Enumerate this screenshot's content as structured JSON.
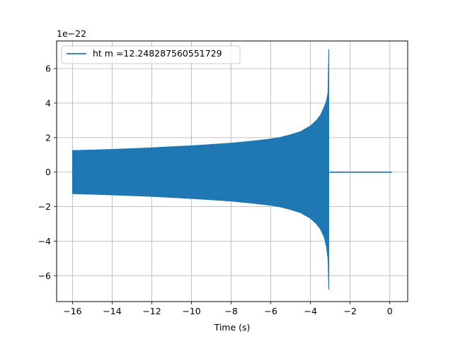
{
  "chart_data": {
    "type": "line",
    "title": "",
    "xlabel": "Time (s)",
    "ylabel": "",
    "y_offset_label": "1e−22",
    "xlim": [
      -16.8,
      0.9
    ],
    "ylim": [
      -7.5,
      7.6
    ],
    "x_ticks": [
      -16,
      -14,
      -12,
      -10,
      -8,
      -6,
      -4,
      -2,
      0
    ],
    "x_tick_labels": [
      "−16",
      "−14",
      "−12",
      "−10",
      "−8",
      "−6",
      "−4",
      "−2",
      "0"
    ],
    "y_ticks": [
      -6,
      -4,
      -2,
      0,
      2,
      4,
      6
    ],
    "y_tick_labels": [
      "−6",
      "−4",
      "−2",
      "0",
      "2",
      "4",
      "6"
    ],
    "grid": true,
    "legend_position": "top-left",
    "series": [
      {
        "name": "ht m =12.248287560551729",
        "color": "#1f77b4",
        "envelope_x": [
          -16.0,
          -15.0,
          -14.0,
          -13.0,
          -12.0,
          -11.0,
          -10.0,
          -9.0,
          -8.0,
          -7.0,
          -6.0,
          -5.5,
          -5.0,
          -4.5,
          -4.0,
          -3.7,
          -3.5,
          -3.3,
          -3.2,
          -3.12,
          -3.08
        ],
        "envelope_upper": [
          1.25,
          1.28,
          1.32,
          1.36,
          1.41,
          1.47,
          1.53,
          1.6,
          1.68,
          1.79,
          1.92,
          2.02,
          2.17,
          2.35,
          2.68,
          3.0,
          3.3,
          3.8,
          4.1,
          4.6,
          7.1
        ],
        "envelope_lower": [
          -1.25,
          -1.28,
          -1.32,
          -1.36,
          -1.41,
          -1.47,
          -1.53,
          -1.6,
          -1.68,
          -1.79,
          -1.92,
          -2.02,
          -2.17,
          -2.35,
          -2.68,
          -3.0,
          -3.3,
          -3.8,
          -4.3,
          -5.0,
          -6.8
        ],
        "ringdown_x": [
          -3.05,
          0.1
        ],
        "ringdown_y": [
          0,
          0
        ]
      }
    ]
  }
}
